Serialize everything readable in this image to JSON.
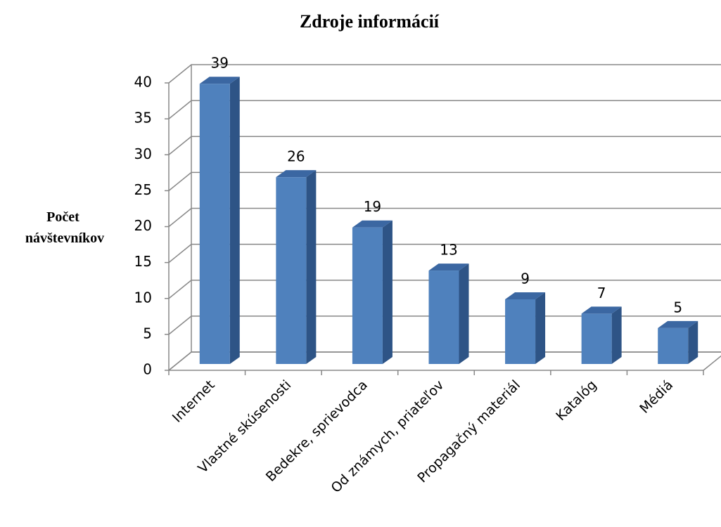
{
  "chart_data": {
    "type": "bar3d",
    "title": "Zdroje informácií",
    "y_label": "Počet návštevníkov",
    "categories": [
      "Internet",
      "Vlastné skúsenosti",
      "Bedekre, sprievodca",
      "Od známych, priateľov",
      "Propagačný materiál",
      "Katalóg",
      "Médiá"
    ],
    "values": [
      39,
      26,
      19,
      13,
      9,
      7,
      5
    ],
    "color": "#4f81bd",
    "ylim": [
      0,
      40
    ],
    "yticks": [
      0,
      5,
      10,
      15,
      20,
      25,
      30,
      35,
      40
    ],
    "grid": true
  }
}
